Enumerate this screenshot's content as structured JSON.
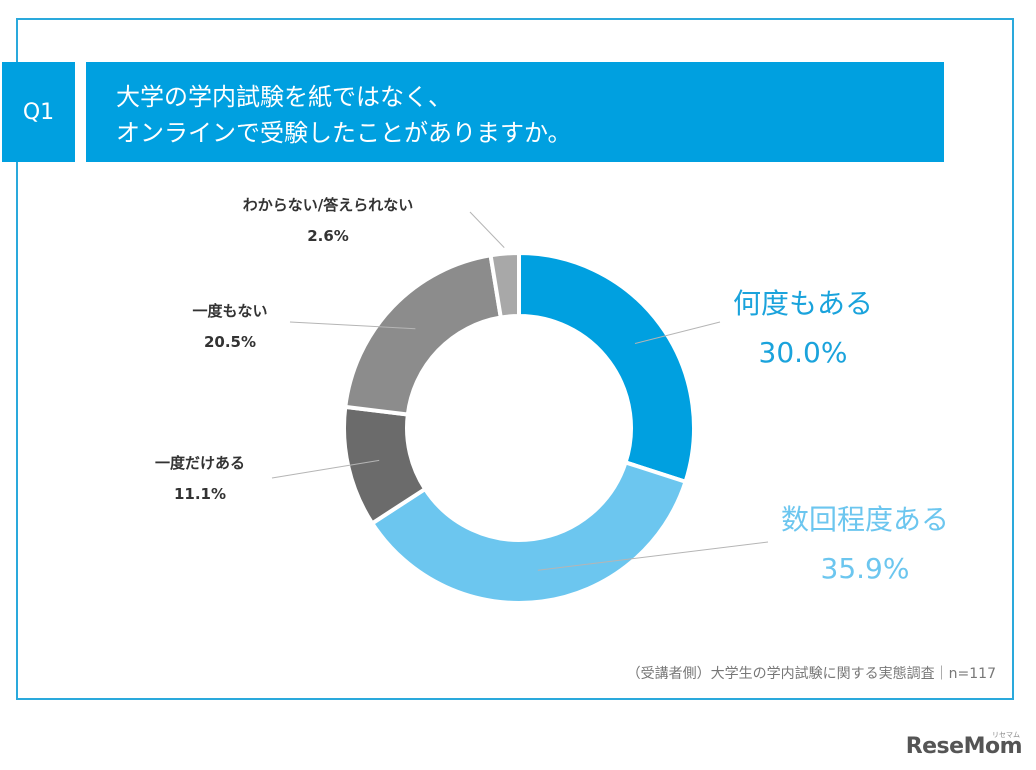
{
  "question": {
    "number": "Q1",
    "line1": "大学の学内試験を紙ではなく、",
    "line2": "オンラインで受験したことがありますか。"
  },
  "chart_data": {
    "type": "pie",
    "style": "donut",
    "categories": [
      "何度もある",
      "数回程度ある",
      "一度だけある",
      "一度もない",
      "わからない/答えられない"
    ],
    "values": [
      30.0,
      35.9,
      11.1,
      20.5,
      2.6
    ],
    "value_labels": [
      "30.0%",
      "35.9%",
      "11.1%",
      "20.5%",
      "2.6%"
    ],
    "colors": [
      "#00a0e0",
      "#6cc6ef",
      "#6b6b6b",
      "#8c8c8c",
      "#a8a8a8"
    ],
    "label_colors": [
      "#1aa3dc",
      "#6cc6ef",
      "#333333",
      "#333333",
      "#333333"
    ]
  },
  "footnote": "（受講者側）大学生の学内試験に関する実態調査｜n=117",
  "logo": {
    "text": "ReseMom",
    "kana": "リセマム"
  }
}
